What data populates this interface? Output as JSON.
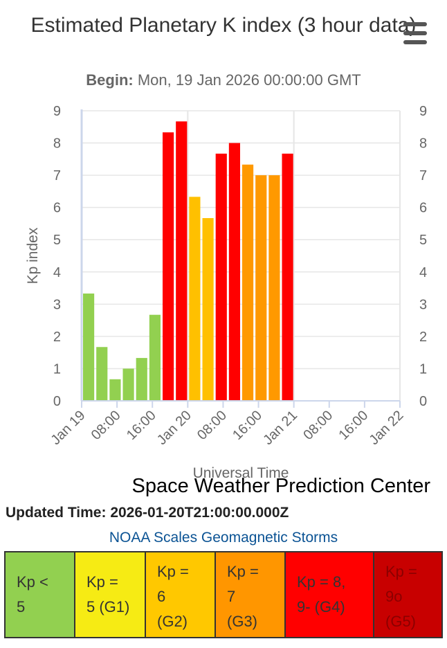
{
  "header": {
    "title": "Estimated Planetary K index (3 hour data)",
    "subtitle_label": "Begin:",
    "subtitle_value": "Mon, 19 Jan 2026 00:00:00 GMT",
    "menu_icon": "hamburger-menu-icon"
  },
  "chart_data": {
    "type": "bar",
    "xlabel": "Universal Time",
    "ylabel": "Kp index",
    "ylim": [
      0,
      9
    ],
    "y_ticks": [
      "0",
      "1",
      "2",
      "3",
      "4",
      "5",
      "6",
      "7",
      "8",
      "9"
    ],
    "x_tick_labels": [
      "Jan 19",
      "08:00",
      "16:00",
      "Jan 20",
      "08:00",
      "16:00",
      "Jan 21",
      "08:00",
      "16:00",
      "Jan 22"
    ],
    "grid": true,
    "categories": [
      "Jan 19 00:00",
      "Jan 19 03:00",
      "Jan 19 06:00",
      "Jan 19 09:00",
      "Jan 19 12:00",
      "Jan 19 15:00",
      "Jan 19 18:00",
      "Jan 19 21:00",
      "Jan 20 00:00",
      "Jan 20 03:00",
      "Jan 20 06:00",
      "Jan 20 09:00",
      "Jan 20 12:00",
      "Jan 20 15:00",
      "Jan 20 18:00",
      "Jan 20 21:00"
    ],
    "values": [
      3.33,
      1.67,
      0.67,
      1.0,
      1.33,
      2.67,
      8.33,
      8.67,
      6.33,
      5.67,
      7.67,
      8.0,
      7.33,
      7.0,
      7.0,
      7.67
    ],
    "bar_colors": [
      "#92d050",
      "#92d050",
      "#92d050",
      "#92d050",
      "#92d050",
      "#92d050",
      "#ff0000",
      "#ff0000",
      "#ffc000",
      "#ffc000",
      "#ff0000",
      "#ff0000",
      "#ff9900",
      "#ff9900",
      "#ff9900",
      "#ff0000"
    ]
  },
  "footer": {
    "credit": "Space Weather Prediction Center",
    "updated_label": "Updated Time:",
    "updated_value": "2026-01-20T21:00:00.000Z",
    "scales_link": "NOAA Scales Geomagnetic Storms"
  },
  "scales": [
    {
      "lines": [
        "Kp <",
        "5"
      ],
      "bg": "#92d050",
      "fg": "#333333"
    },
    {
      "lines": [
        "Kp =",
        "5 (G1)"
      ],
      "bg": "#f6eb14",
      "fg": "#333333"
    },
    {
      "lines": [
        "Kp =",
        "6",
        "(G2)"
      ],
      "bg": "#ffc800",
      "fg": "#333333"
    },
    {
      "lines": [
        "Kp =",
        "7",
        "(G3)"
      ],
      "bg": "#ff9600",
      "fg": "#333333"
    },
    {
      "lines": [
        "Kp = 8,",
        "9- (G4)"
      ],
      "bg": "#ff0000",
      "fg": "#333333"
    },
    {
      "lines": [
        "Kp =",
        "9o",
        "(G5)"
      ],
      "bg": "#c80000",
      "fg": "#8b0000"
    }
  ]
}
